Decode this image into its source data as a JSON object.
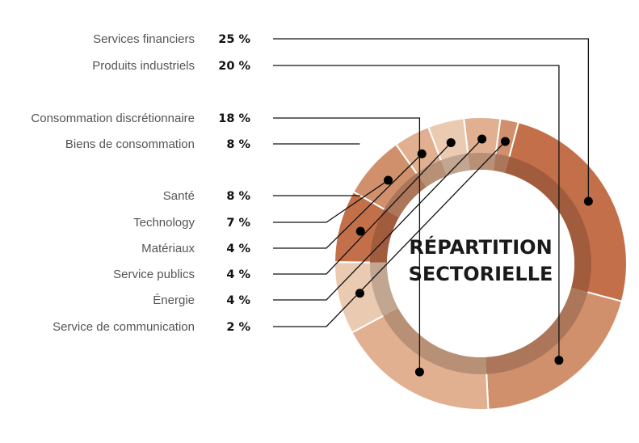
{
  "chart_data": {
    "type": "pie",
    "style": "donut",
    "title_lines": [
      "RÉPARTITION",
      "SECTORIELLE"
    ],
    "value_suffix": " %",
    "segments": [
      {
        "label": "Services financiers",
        "value": 25,
        "color": "#c3704a"
      },
      {
        "label": "Produits industriels",
        "value": 20,
        "color": "#d0906c"
      },
      {
        "label": "Consommation discrétionnaire",
        "value": 18,
        "color": "#e0b090"
      },
      {
        "label": "Biens de consommation",
        "value": 8,
        "color": "#ebcab2"
      },
      {
        "label": "Santé",
        "value": 8,
        "color": "#c3704a"
      },
      {
        "label": "Technology",
        "value": 7,
        "color": "#d0906c"
      },
      {
        "label": "Matériaux",
        "value": 4,
        "color": "#e0b090"
      },
      {
        "label": "Service publics",
        "value": 4,
        "color": "#ebcab2"
      },
      {
        "label": "Énergie",
        "value": 4,
        "color": "#e0b090"
      },
      {
        "label": "Service de communication",
        "value": 2,
        "color": "#d0906c"
      }
    ]
  }
}
